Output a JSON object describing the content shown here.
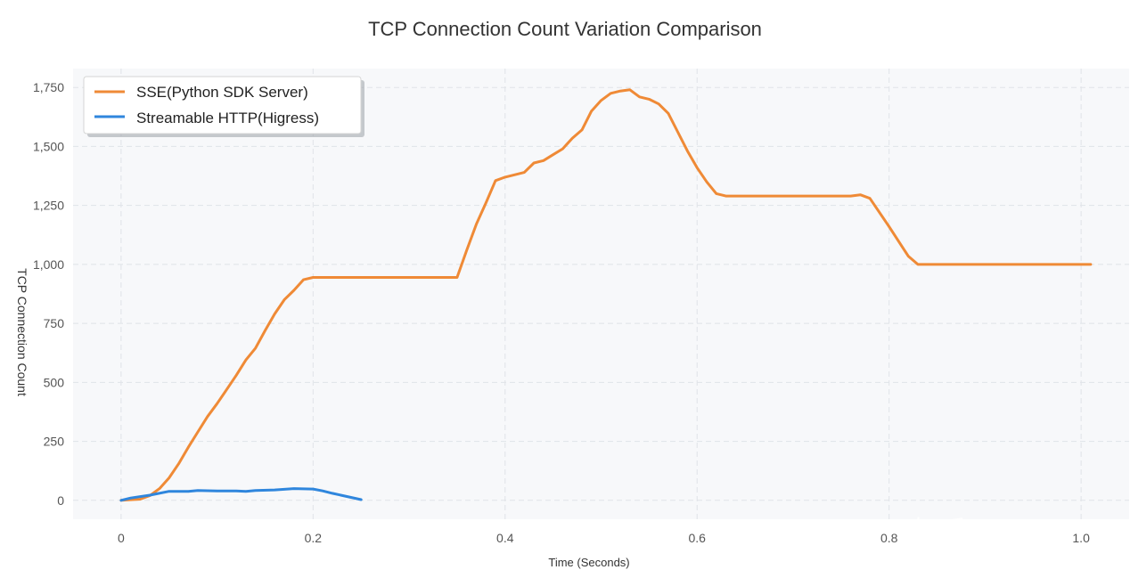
{
  "chart_data": {
    "type": "line",
    "title": "TCP Connection Count Variation Comparison",
    "xlabel": "Time (Seconds)",
    "ylabel": "TCP Connection Count",
    "xlim": [
      -0.05,
      1.05
    ],
    "ylim": [
      -80,
      1830
    ],
    "xticks": [
      0,
      0.2,
      0.4,
      0.6,
      0.8,
      1.0
    ],
    "xtick_labels": [
      "0",
      "0.2",
      "0.4",
      "0.6",
      "0.8",
      "1.0"
    ],
    "yticks": [
      0,
      250,
      500,
      750,
      1000,
      1250,
      1500,
      1750
    ],
    "ytick_labels": [
      "0",
      "250",
      "500",
      "750",
      "1,000",
      "1,250",
      "1,500",
      "1,750"
    ],
    "grid": true,
    "legend_position": "top-left",
    "series": [
      {
        "name": "SSE(Python SDK Server)",
        "color": "#ef8a36",
        "x": [
          0,
          0.02,
          0.03,
          0.04,
          0.05,
          0.06,
          0.07,
          0.08,
          0.09,
          0.1,
          0.11,
          0.12,
          0.13,
          0.14,
          0.15,
          0.16,
          0.17,
          0.18,
          0.19,
          0.2,
          0.25,
          0.3,
          0.35,
          0.36,
          0.37,
          0.38,
          0.39,
          0.4,
          0.42,
          0.43,
          0.44,
          0.45,
          0.46,
          0.47,
          0.48,
          0.49,
          0.5,
          0.51,
          0.52,
          0.53,
          0.54,
          0.55,
          0.56,
          0.57,
          0.58,
          0.59,
          0.6,
          0.61,
          0.62,
          0.63,
          0.64,
          0.7,
          0.76,
          0.77,
          0.78,
          0.8,
          0.82,
          0.83,
          0.9,
          1.0,
          1.01
        ],
        "y": [
          0,
          5,
          20,
          50,
          95,
          155,
          225,
          290,
          355,
          410,
          470,
          530,
          595,
          645,
          720,
          790,
          850,
          890,
          935,
          945,
          945,
          945,
          945,
          1060,
          1170,
          1260,
          1355,
          1370,
          1390,
          1430,
          1440,
          1465,
          1490,
          1535,
          1570,
          1650,
          1695,
          1725,
          1735,
          1740,
          1710,
          1700,
          1680,
          1640,
          1560,
          1480,
          1410,
          1350,
          1300,
          1290,
          1290,
          1290,
          1290,
          1295,
          1280,
          1160,
          1035,
          1000,
          1000,
          1000,
          1000
        ]
      },
      {
        "name": "Streamable HTTP(Higress)",
        "color": "#2f86dd",
        "x": [
          0,
          0.01,
          0.03,
          0.05,
          0.07,
          0.08,
          0.1,
          0.12,
          0.13,
          0.14,
          0.16,
          0.18,
          0.2,
          0.21,
          0.22,
          0.24,
          0.25
        ],
        "y": [
          0,
          10,
          22,
          38,
          38,
          42,
          40,
          40,
          38,
          42,
          44,
          50,
          48,
          40,
          30,
          12,
          3
        ]
      }
    ]
  },
  "watermark": "知乎 @yuan"
}
